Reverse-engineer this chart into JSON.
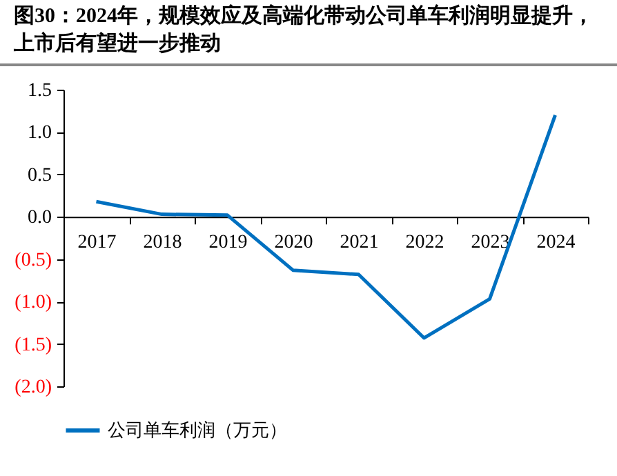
{
  "chart_data": {
    "type": "line",
    "title": "图30：2024年，规模效应及高端化带动公司单车利润明显提升，上市后有望进一步推动",
    "categories": [
      "2017",
      "2018",
      "2019",
      "2020",
      "2021",
      "2022",
      "2023",
      "2024"
    ],
    "series": [
      {
        "name": "公司单车利润（万元）",
        "color": "#0070c0",
        "values": [
          0.18,
          0.03,
          0.02,
          -0.63,
          -0.68,
          -1.43,
          -0.97,
          1.2
        ]
      }
    ],
    "ylim": [
      -2.0,
      1.5
    ],
    "yticks": [
      {
        "value": 1.5,
        "label": "1.5"
      },
      {
        "value": 1.0,
        "label": "1.0"
      },
      {
        "value": 0.5,
        "label": "0.5"
      },
      {
        "value": 0.0,
        "label": "0.0"
      },
      {
        "value": -0.5,
        "label": "(0.5)"
      },
      {
        "value": -1.0,
        "label": "(1.0)"
      },
      {
        "value": -1.5,
        "label": "(1.5)"
      },
      {
        "value": -2.0,
        "label": "(2.0)"
      }
    ],
    "grid": false,
    "legend": "bottom",
    "marker": "none",
    "line_style": "solid"
  }
}
